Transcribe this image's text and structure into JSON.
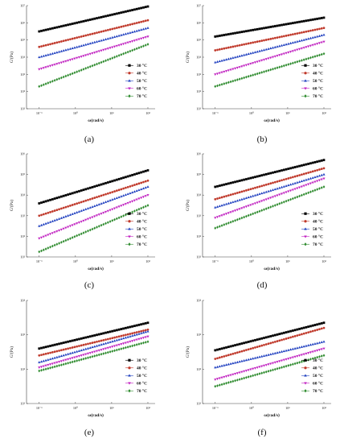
{
  "chart_data": [
    {
      "type": "scatter",
      "panel_label": "(a)",
      "xlabel": "ω(rad/s)",
      "ylabel": "G'(Pa)",
      "xscale": "log",
      "yscale": "log",
      "xticks": [
        "10⁻¹",
        "10⁰",
        "10¹",
        "10²"
      ],
      "yticks": [
        "10¹",
        "10²",
        "10³",
        "10⁴",
        "10⁵",
        "10⁶",
        "10⁷"
      ],
      "ylim_exp": [
        1,
        7
      ],
      "xlim_exp": [
        -1.35,
        2.2
      ],
      "legend_position": "right",
      "series": [
        {
          "name": "30 °C",
          "color": "#000000",
          "marker": "square",
          "y_exp_start": 5.5,
          "y_exp_end": 6.95
        },
        {
          "name": "40 °C",
          "color": "#c0392b",
          "marker": "circle",
          "y_exp_start": 4.6,
          "y_exp_end": 6.15
        },
        {
          "name": "50 °C",
          "color": "#1f3fbf",
          "marker": "triangle-up",
          "y_exp_start": 4.0,
          "y_exp_end": 5.7
        },
        {
          "name": "60 °C",
          "color": "#c020c0",
          "marker": "triangle-down",
          "y_exp_start": 3.3,
          "y_exp_end": 5.2
        },
        {
          "name": "70 °C",
          "color": "#2e8b2e",
          "marker": "diamond",
          "y_exp_start": 2.3,
          "y_exp_end": 4.75
        }
      ]
    },
    {
      "type": "scatter",
      "panel_label": "(b)",
      "xlabel": "ω(rad/s)",
      "ylabel": "G'(Pa)",
      "xscale": "log",
      "yscale": "log",
      "xticks": [
        "10⁻¹",
        "10⁰",
        "10¹",
        "10²"
      ],
      "yticks": [
        "10¹",
        "10²",
        "10³",
        "10⁴",
        "10⁵",
        "10⁶",
        "10⁷"
      ],
      "ylim_exp": [
        1,
        7
      ],
      "xlim_exp": [
        -1.35,
        2.2
      ],
      "legend_position": "right",
      "series": [
        {
          "name": "30 °C",
          "color": "#000000",
          "marker": "square",
          "y_exp_start": 5.2,
          "y_exp_end": 6.3
        },
        {
          "name": "40 °C",
          "color": "#c0392b",
          "marker": "circle",
          "y_exp_start": 4.4,
          "y_exp_end": 5.7
        },
        {
          "name": "50 °C",
          "color": "#1f3fbf",
          "marker": "triangle-up",
          "y_exp_start": 3.7,
          "y_exp_end": 5.3
        },
        {
          "name": "60 °C",
          "color": "#c020c0",
          "marker": "triangle-down",
          "y_exp_start": 3.0,
          "y_exp_end": 4.9
        },
        {
          "name": "70 °C",
          "color": "#2e8b2e",
          "marker": "diamond",
          "y_exp_start": 2.3,
          "y_exp_end": 4.2
        }
      ]
    },
    {
      "type": "scatter",
      "panel_label": "(c)",
      "xlabel": "ω(rad/s)",
      "ylabel": "G'(Pa)",
      "xscale": "log",
      "yscale": "log",
      "xticks": [
        "10⁻¹",
        "10⁰",
        "10¹",
        "10²"
      ],
      "yticks": [
        "10¹",
        "10²",
        "10³",
        "10⁴",
        "10⁵",
        "10⁶"
      ],
      "ylim_exp": [
        1,
        6
      ],
      "xlim_exp": [
        -1.35,
        2.2
      ],
      "legend_position": "right",
      "series": [
        {
          "name": "30 °C",
          "color": "#000000",
          "marker": "square",
          "y_exp_start": 3.6,
          "y_exp_end": 5.2
        },
        {
          "name": "40 °C",
          "color": "#c0392b",
          "marker": "circle",
          "y_exp_start": 3.0,
          "y_exp_end": 4.7
        },
        {
          "name": "50 °C",
          "color": "#1f3fbf",
          "marker": "triangle-up",
          "y_exp_start": 2.5,
          "y_exp_end": 4.4
        },
        {
          "name": "60 °C",
          "color": "#c020c0",
          "marker": "triangle-down",
          "y_exp_start": 1.9,
          "y_exp_end": 4.0
        },
        {
          "name": "70 °C",
          "color": "#2e8b2e",
          "marker": "diamond",
          "y_exp_start": 1.25,
          "y_exp_end": 3.5
        }
      ]
    },
    {
      "type": "scatter",
      "panel_label": "(d)",
      "xlabel": "ω(rad/s)",
      "ylabel": "G'(Pa)",
      "xscale": "log",
      "yscale": "log",
      "xticks": [
        "10⁻¹",
        "10⁰",
        "10¹",
        "10²"
      ],
      "yticks": [
        "10¹",
        "10²",
        "10³",
        "10⁴",
        "10⁵",
        "10⁶"
      ],
      "ylim_exp": [
        1,
        6
      ],
      "xlim_exp": [
        -1.35,
        2.2
      ],
      "legend_position": "right",
      "series": [
        {
          "name": "30 °C",
          "color": "#000000",
          "marker": "square",
          "y_exp_start": 4.4,
          "y_exp_end": 5.7
        },
        {
          "name": "40 °C",
          "color": "#c0392b",
          "marker": "circle",
          "y_exp_start": 3.8,
          "y_exp_end": 5.3
        },
        {
          "name": "50 °C",
          "color": "#1f3fbf",
          "marker": "triangle-up",
          "y_exp_start": 3.4,
          "y_exp_end": 5.0
        },
        {
          "name": "60 °C",
          "color": "#c020c0",
          "marker": "triangle-down",
          "y_exp_start": 2.9,
          "y_exp_end": 4.8
        },
        {
          "name": "70 °C",
          "color": "#2e8b2e",
          "marker": "diamond",
          "y_exp_start": 2.4,
          "y_exp_end": 4.4
        }
      ]
    },
    {
      "type": "scatter",
      "panel_label": "(e)",
      "xlabel": "ω(rad/s)",
      "ylabel": "G'(Pa)",
      "xscale": "log",
      "yscale": "log",
      "xticks": [
        "10⁻¹",
        "10⁰",
        "10¹",
        "10²"
      ],
      "yticks": [
        "10¹",
        "10²",
        "10³",
        "10⁴"
      ],
      "ylim_exp": [
        1,
        4
      ],
      "xlim_exp": [
        -1.35,
        2.2
      ],
      "legend_position": "right",
      "series": [
        {
          "name": "30 °C",
          "color": "#000000",
          "marker": "square",
          "y_exp_start": 2.6,
          "y_exp_end": 3.35
        },
        {
          "name": "40 °C",
          "color": "#c0392b",
          "marker": "circle",
          "y_exp_start": 2.4,
          "y_exp_end": 3.15
        },
        {
          "name": "50 °C",
          "color": "#1f3fbf",
          "marker": "triangle-up",
          "y_exp_start": 2.2,
          "y_exp_end": 3.1
        },
        {
          "name": "60 °C",
          "color": "#c020c0",
          "marker": "triangle-down",
          "y_exp_start": 2.05,
          "y_exp_end": 2.95
        },
        {
          "name": "70 °C",
          "color": "#2e8b2e",
          "marker": "diamond",
          "y_exp_start": 1.95,
          "y_exp_end": 2.8
        }
      ]
    },
    {
      "type": "scatter",
      "panel_label": "(f)",
      "xlabel": "ω(rad/s)",
      "ylabel": "G'(Pa)",
      "xscale": "log",
      "yscale": "log",
      "xticks": [
        "10⁻¹",
        "10⁰",
        "10¹",
        "10²"
      ],
      "yticks": [
        "10¹",
        "10²",
        "10³",
        "10⁴"
      ],
      "ylim_exp": [
        1,
        4
      ],
      "xlim_exp": [
        -1.35,
        2.2
      ],
      "legend_position": "right",
      "series": [
        {
          "name": "30 °C",
          "color": "#000000",
          "marker": "square",
          "y_exp_start": 2.55,
          "y_exp_end": 3.35
        },
        {
          "name": "40 °C",
          "color": "#c0392b",
          "marker": "circle",
          "y_exp_start": 2.3,
          "y_exp_end": 3.2
        },
        {
          "name": "50 °C",
          "color": "#1f3fbf",
          "marker": "triangle-up",
          "y_exp_start": 2.05,
          "y_exp_end": 2.8
        },
        {
          "name": "60 °C",
          "color": "#c020c0",
          "marker": "triangle-down",
          "y_exp_start": 1.7,
          "y_exp_end": 2.6
        },
        {
          "name": "70 °C",
          "color": "#2e8b2e",
          "marker": "diamond",
          "y_exp_start": 1.5,
          "y_exp_end": 2.4
        }
      ]
    }
  ]
}
